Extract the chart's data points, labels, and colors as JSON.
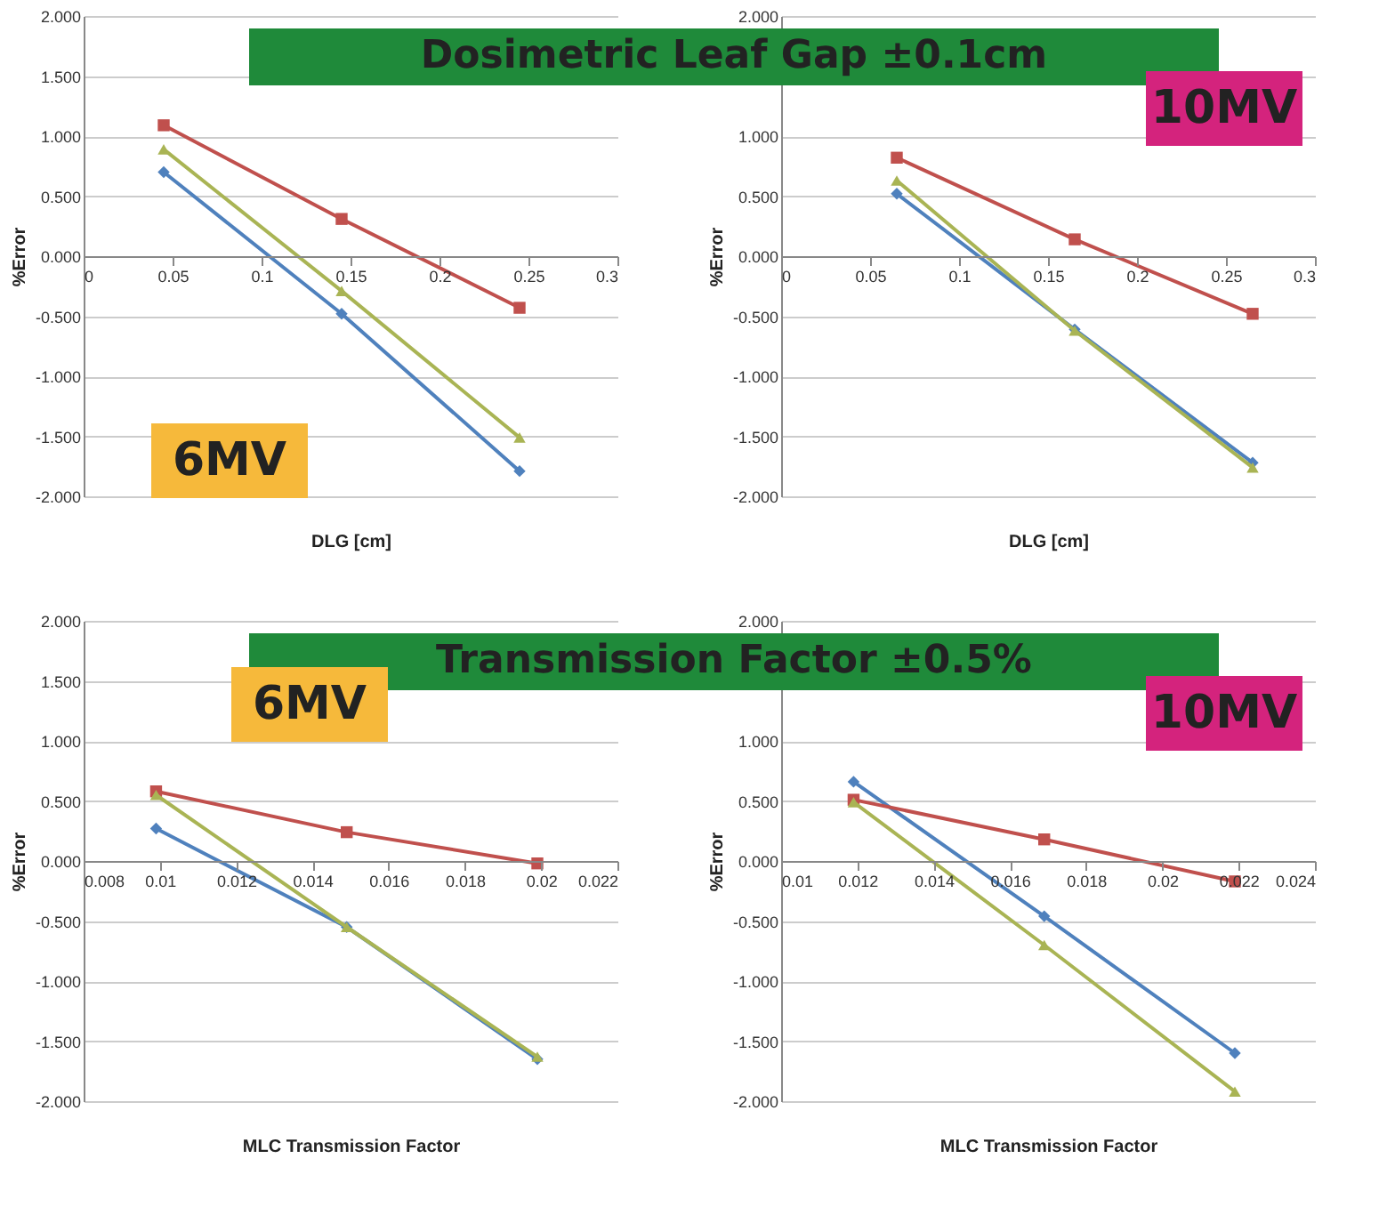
{
  "chart_data": [
    {
      "type": "line",
      "title": "Dosimetric Leaf Gap ±0.1cm",
      "xlabel": "DLG [cm]",
      "ylabel": "%Error",
      "annotations": [
        "6MV"
      ],
      "x": [
        0.045,
        0.145,
        0.245
      ],
      "series": [
        {
          "color": "#4f81bd",
          "marker": "diamond",
          "values": [
            0.7,
            -0.48,
            -1.79
          ]
        },
        {
          "color": "#c0504d",
          "marker": "square",
          "values": [
            1.09,
            0.31,
            -0.43
          ]
        },
        {
          "color": "#a9b454",
          "marker": "triangle",
          "values": [
            0.89,
            -0.29,
            -1.51
          ]
        }
      ],
      "xlim": [
        0,
        0.3
      ],
      "xticks": [
        0,
        0.05,
        0.1,
        0.15,
        0.2,
        0.25,
        0.3
      ],
      "ylim": [
        -2,
        2
      ],
      "yticks": [
        {
          "value": -2,
          "label": "-2.000"
        },
        {
          "value": -1.5,
          "label": "-1.500"
        },
        {
          "value": -1,
          "label": "-1.000"
        },
        {
          "value": -0.5,
          "label": "-0.500"
        },
        {
          "value": 0,
          "label": "0.000"
        },
        {
          "value": 0.5,
          "label": "0.500"
        },
        {
          "value": 1,
          "label": "1.000"
        },
        {
          "value": 1.5,
          "label": "1.500"
        },
        {
          "value": 2,
          "label": "2.000"
        }
      ],
      "grid": "y"
    },
    {
      "type": "line",
      "xlabel": "DLG [cm]",
      "ylabel": "%Error",
      "annotations": [
        "10MV"
      ],
      "x": [
        0.065,
        0.165,
        0.265
      ],
      "series": [
        {
          "color": "#4f81bd",
          "marker": "diamond",
          "values": [
            0.52,
            -0.61,
            -1.72
          ]
        },
        {
          "color": "#c0504d",
          "marker": "square",
          "values": [
            0.82,
            0.14,
            -0.48
          ]
        },
        {
          "color": "#a9b454",
          "marker": "triangle",
          "values": [
            0.63,
            -0.62,
            -1.76
          ]
        }
      ],
      "xlim": [
        0,
        0.3
      ],
      "xticks": [
        0,
        0.05,
        0.1,
        0.15,
        0.2,
        0.25,
        0.3
      ],
      "ylim": [
        -2,
        2
      ],
      "yticks": [
        {
          "value": -2,
          "label": "-2.000"
        },
        {
          "value": -1.5,
          "label": "-1.500"
        },
        {
          "value": -1,
          "label": "-1.000"
        },
        {
          "value": -0.5,
          "label": "-0.500"
        },
        {
          "value": 0,
          "label": "0.000"
        },
        {
          "value": 0.5,
          "label": "0.500"
        },
        {
          "value": 1,
          "label": "1.000"
        },
        {
          "value": 1.5,
          "label": null
        },
        {
          "value": 2,
          "label": "2.000"
        }
      ],
      "grid": "y"
    },
    {
      "type": "line",
      "title": "Transmission Factor ±0.5%",
      "xlabel": "MLC Transmission Factor",
      "ylabel": "%Error",
      "annotations": [
        "6MV"
      ],
      "x": [
        0.0099,
        0.0149,
        0.0199
      ],
      "series": [
        {
          "color": "#4f81bd",
          "marker": "diamond",
          "values": [
            0.27,
            -0.55,
            -1.65
          ]
        },
        {
          "color": "#c0504d",
          "marker": "square",
          "values": [
            0.58,
            0.24,
            -0.02
          ]
        },
        {
          "color": "#a9b454",
          "marker": "triangle",
          "values": [
            0.55,
            -0.55,
            -1.63
          ]
        }
      ],
      "xlim": [
        0.008,
        0.022
      ],
      "xticks": [
        0.008,
        0.01,
        0.012,
        0.014,
        0.016,
        0.018,
        0.02,
        0.022
      ],
      "ylim": [
        -2,
        2
      ],
      "yticks": [
        {
          "value": -2,
          "label": "-2.000"
        },
        {
          "value": -1.5,
          "label": "-1.500"
        },
        {
          "value": -1,
          "label": "-1.000"
        },
        {
          "value": -0.5,
          "label": "-0.500"
        },
        {
          "value": 0,
          "label": "0.000"
        },
        {
          "value": 0.5,
          "label": "0.500"
        },
        {
          "value": 1,
          "label": "1.000"
        },
        {
          "value": 1.5,
          "label": "1.500"
        },
        {
          "value": 2,
          "label": "2.000"
        }
      ],
      "grid": "y"
    },
    {
      "type": "line",
      "xlabel": "MLC Transmission Factor",
      "ylabel": "%Error",
      "annotations": [
        "10MV"
      ],
      "x": [
        0.0119,
        0.0169,
        0.0219
      ],
      "series": [
        {
          "color": "#4f81bd",
          "marker": "diamond",
          "values": [
            0.66,
            -0.46,
            -1.6
          ]
        },
        {
          "color": "#c0504d",
          "marker": "square",
          "values": [
            0.51,
            0.18,
            -0.17
          ]
        },
        {
          "color": "#a9b454",
          "marker": "triangle",
          "values": [
            0.49,
            -0.7,
            -1.92
          ]
        }
      ],
      "xlim": [
        0.01,
        0.024
      ],
      "xticks": [
        0.01,
        0.012,
        0.014,
        0.016,
        0.018,
        0.02,
        0.022,
        0.024
      ],
      "ylim": [
        -2,
        2
      ],
      "yticks": [
        {
          "value": -2,
          "label": "-2.000"
        },
        {
          "value": -1.5,
          "label": "-1.500"
        },
        {
          "value": -1,
          "label": "-1.000"
        },
        {
          "value": -0.5,
          "label": "-0.500"
        },
        {
          "value": 0,
          "label": "0.000"
        },
        {
          "value": 0.5,
          "label": "0.500"
        },
        {
          "value": 1,
          "label": "1.000"
        },
        {
          "value": 1.5,
          "label": null
        },
        {
          "value": 2,
          "label": "2.000"
        }
      ],
      "grid": "y"
    }
  ]
}
